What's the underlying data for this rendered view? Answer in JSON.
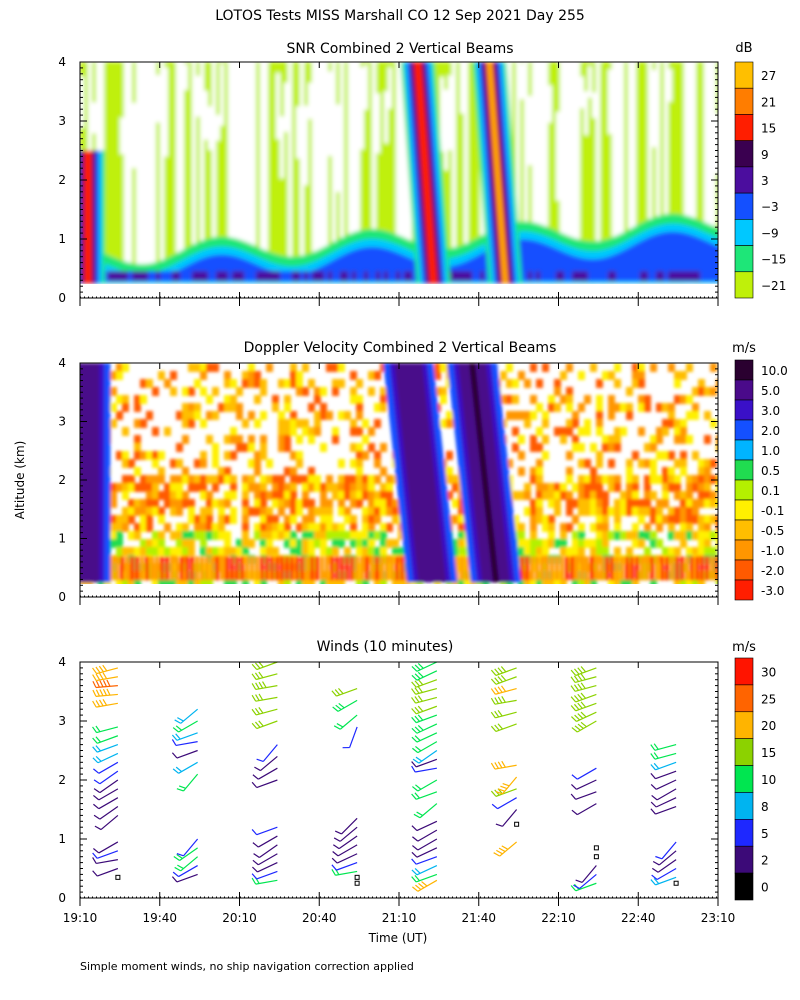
{
  "figure": {
    "title": "LOTOS Tests MISS Marshall CO  12 Sep 2021 Day 255",
    "ylabel": "Altitude (km)",
    "xlabel": "Time (UT)",
    "footnote": "Simple moment winds, no ship navigation correction applied"
  },
  "chart_data": [
    {
      "type": "heatmap",
      "title": "SNR Combined 2 Vertical Beams",
      "xlabel": "Time (UT)",
      "ylabel": "Altitude (km)",
      "x_ticks": [
        "19:10",
        "19:40",
        "20:10",
        "20:40",
        "21:10",
        "21:40",
        "22:10",
        "22:40",
        "23:10"
      ],
      "xlim": [
        "19:10",
        "23:10"
      ],
      "y_ticks": [
        0,
        1,
        2,
        3,
        4
      ],
      "ylim": [
        0,
        4
      ],
      "data_altitude_range_km": [
        0.25,
        4.0
      ],
      "colorbar": {
        "unit": "dB",
        "levels": [
          27,
          21,
          15,
          9,
          3,
          -3,
          -9,
          -15,
          -21
        ],
        "colors": [
          "#ffbf00",
          "#ff7d00",
          "#ff1e00",
          "#3a0050",
          "#4b0d9e",
          "#1450ff",
          "#00c8ff",
          "#1ee678",
          "#bff00a"
        ]
      },
      "features": [
        {
          "time": "19:13",
          "alt_top_km": 2.5,
          "peak_db": 18
        },
        {
          "time": "21:20",
          "alt_top_km": 4.0,
          "peak_db": 18
        },
        {
          "time": "21:47",
          "alt_top_km": 4.0,
          "peak_db": 24
        }
      ]
    },
    {
      "type": "heatmap",
      "title": "Doppler Velocity Combined 2 Vertical Beams",
      "xlabel": "Time (UT)",
      "ylabel": "Altitude (km)",
      "x_ticks": [
        "19:10",
        "19:40",
        "20:10",
        "20:40",
        "21:10",
        "21:40",
        "22:10",
        "22:40",
        "23:10"
      ],
      "xlim": [
        "19:10",
        "23:10"
      ],
      "y_ticks": [
        0,
        1,
        2,
        3,
        4
      ],
      "ylim": [
        0,
        4
      ],
      "data_altitude_range_km": [
        0.25,
        4.0
      ],
      "colorbar": {
        "unit": "m/s",
        "levels": [
          10.0,
          5.0,
          3.0,
          2.0,
          1.0,
          0.5,
          0.1,
          -0.1,
          -0.5,
          -1.0,
          -2.0,
          -3.0
        ],
        "labels": [
          "10.0",
          "5.0",
          "3.0",
          "2.0",
          "1.0",
          "0.5",
          "0.1",
          "-0.1",
          "-0.5",
          "-1.0",
          "-2.0",
          "-3.0"
        ],
        "colors": [
          "#2a0030",
          "#4a0a8a",
          "#3a10c8",
          "#1450ff",
          "#00b4ff",
          "#20dc50",
          "#b4f000",
          "#fff000",
          "#ffbe00",
          "#ff9600",
          "#ff5a00",
          "#ff1e00"
        ]
      },
      "features": [
        {
          "time": "19:12",
          "alt_top_km": 4.0,
          "velocity_ms": 3.0
        },
        {
          "time": "21:18",
          "alt_top_km": 4.0,
          "velocity_ms": 5.0
        },
        {
          "time": "21:42",
          "alt_top_km": 4.0,
          "velocity_ms": 5.0
        }
      ]
    },
    {
      "type": "scatter",
      "title": "Winds (10 minutes)",
      "xlabel": "Time (UT)",
      "ylabel": "Altitude (km)",
      "x_ticks": [
        "19:10",
        "19:40",
        "20:10",
        "20:40",
        "21:10",
        "21:40",
        "22:10",
        "22:40",
        "23:10"
      ],
      "xlim": [
        "19:10",
        "23:10"
      ],
      "y_ticks": [
        0,
        1,
        2,
        3,
        4
      ],
      "ylim": [
        0,
        4
      ],
      "colorbar": {
        "unit": "m/s",
        "levels": [
          30,
          25,
          20,
          15,
          10,
          8,
          5,
          2,
          0
        ],
        "colors": [
          "#ff1400",
          "#ff6400",
          "#ffb400",
          "#8cd200",
          "#00e650",
          "#00b4f0",
          "#1e28ff",
          "#3c0a78",
          "#000000"
        ]
      },
      "profiles": [
        {
          "time": "19:25",
          "levels": [
            {
              "alt": 0.35,
              "speed": 1,
              "dir": 200
            },
            {
              "alt": 0.5,
              "speed": 3,
              "dir": 250
            },
            {
              "alt": 0.65,
              "speed": 4,
              "dir": 260
            },
            {
              "alt": 0.8,
              "speed": 5,
              "dir": 250
            },
            {
              "alt": 0.95,
              "speed": 4,
              "dir": 240
            },
            {
              "alt": 1.4,
              "speed": 4,
              "dir": 230
            },
            {
              "alt": 1.55,
              "speed": 4,
              "dir": 235
            },
            {
              "alt": 1.7,
              "speed": 4,
              "dir": 240
            },
            {
              "alt": 1.85,
              "speed": 4,
              "dir": 240
            },
            {
              "alt": 2.0,
              "speed": 4,
              "dir": 235
            },
            {
              "alt": 2.15,
              "speed": 5,
              "dir": 235
            },
            {
              "alt": 2.3,
              "speed": 7,
              "dir": 240
            },
            {
              "alt": 2.45,
              "speed": 8,
              "dir": 245
            },
            {
              "alt": 2.6,
              "speed": 9,
              "dir": 250
            },
            {
              "alt": 2.75,
              "speed": 10,
              "dir": 250
            },
            {
              "alt": 2.9,
              "speed": 12,
              "dir": 255
            },
            {
              "alt": 3.3,
              "speed": 22,
              "dir": 260
            },
            {
              "alt": 3.45,
              "speed": 24,
              "dir": 265
            },
            {
              "alt": 3.6,
              "speed": 25,
              "dir": 265
            },
            {
              "alt": 3.75,
              "speed": 22,
              "dir": 260
            },
            {
              "alt": 3.9,
              "speed": 20,
              "dir": 255
            }
          ]
        },
        {
          "time": "19:55",
          "levels": [
            {
              "alt": 0.4,
              "speed": 4,
              "dir": 250
            },
            {
              "alt": 0.55,
              "speed": 6,
              "dir": 240
            },
            {
              "alt": 0.7,
              "speed": 10,
              "dir": 230
            },
            {
              "alt": 0.85,
              "speed": 12,
              "dir": 235
            },
            {
              "alt": 1.0,
              "speed": 5,
              "dir": 220
            },
            {
              "alt": 2.1,
              "speed": 10,
              "dir": 220
            },
            {
              "alt": 2.3,
              "speed": 8,
              "dir": 240
            },
            {
              "alt": 2.5,
              "speed": 4,
              "dir": 250
            },
            {
              "alt": 2.65,
              "speed": 5,
              "dir": 260
            },
            {
              "alt": 2.8,
              "speed": 9,
              "dir": 250
            },
            {
              "alt": 3.0,
              "speed": 10,
              "dir": 240
            },
            {
              "alt": 3.2,
              "speed": 9,
              "dir": 230
            }
          ]
        },
        {
          "time": "20:25",
          "levels": [
            {
              "alt": 0.3,
              "speed": 12,
              "dir": 260
            },
            {
              "alt": 0.45,
              "speed": 6,
              "dir": 250
            },
            {
              "alt": 0.6,
              "speed": 4,
              "dir": 245
            },
            {
              "alt": 0.75,
              "speed": 3,
              "dir": 240
            },
            {
              "alt": 0.9,
              "speed": 4,
              "dir": 235
            },
            {
              "alt": 1.05,
              "speed": 4,
              "dir": 240
            },
            {
              "alt": 1.2,
              "speed": 5,
              "dir": 250
            },
            {
              "alt": 2.0,
              "speed": 4,
              "dir": 250
            },
            {
              "alt": 2.2,
              "speed": 3,
              "dir": 240
            },
            {
              "alt": 2.4,
              "speed": 4,
              "dir": 230
            },
            {
              "alt": 2.6,
              "speed": 5,
              "dir": 220
            },
            {
              "alt": 3.0,
              "speed": 15,
              "dir": 250
            },
            {
              "alt": 3.2,
              "speed": 16,
              "dir": 255
            },
            {
              "alt": 3.4,
              "speed": 17,
              "dir": 260
            },
            {
              "alt": 3.6,
              "speed": 18,
              "dir": 260
            },
            {
              "alt": 3.8,
              "speed": 17,
              "dir": 255
            },
            {
              "alt": 4.0,
              "speed": 16,
              "dir": 250
            }
          ]
        },
        {
          "time": "20:55",
          "levels": [
            {
              "alt": 0.25,
              "speed": 1,
              "dir": 180
            },
            {
              "alt": 0.35,
              "speed": 1,
              "dir": 200
            },
            {
              "alt": 0.45,
              "speed": 10,
              "dir": 260
            },
            {
              "alt": 0.6,
              "speed": 5,
              "dir": 250
            },
            {
              "alt": 0.75,
              "speed": 4,
              "dir": 245
            },
            {
              "alt": 0.9,
              "speed": 4,
              "dir": 240
            },
            {
              "alt": 1.05,
              "speed": 4,
              "dir": 235
            },
            {
              "alt": 1.2,
              "speed": 4,
              "dir": 230
            },
            {
              "alt": 1.35,
              "speed": 4,
              "dir": 225
            },
            {
              "alt": 2.9,
              "speed": 5,
              "dir": 200
            },
            {
              "alt": 3.1,
              "speed": 12,
              "dir": 230
            },
            {
              "alt": 3.35,
              "speed": 14,
              "dir": 240
            },
            {
              "alt": 3.55,
              "speed": 15,
              "dir": 250
            }
          ]
        },
        {
          "time": "21:25",
          "levels": [
            {
              "alt": 0.3,
              "speed": 20,
              "dir": 240
            },
            {
              "alt": 0.4,
              "speed": 12,
              "dir": 250
            },
            {
              "alt": 0.55,
              "speed": 8,
              "dir": 245
            },
            {
              "alt": 0.7,
              "speed": 5,
              "dir": 250
            },
            {
              "alt": 0.85,
              "speed": 4,
              "dir": 245
            },
            {
              "alt": 1.0,
              "speed": 4,
              "dir": 240
            },
            {
              "alt": 1.15,
              "speed": 4,
              "dir": 240
            },
            {
              "alt": 1.3,
              "speed": 4,
              "dir": 245
            },
            {
              "alt": 1.6,
              "speed": 10,
              "dir": 230
            },
            {
              "alt": 1.8,
              "speed": 12,
              "dir": 250
            },
            {
              "alt": 2.0,
              "speed": 10,
              "dir": 240
            },
            {
              "alt": 2.2,
              "speed": 6,
              "dir": 260
            },
            {
              "alt": 2.35,
              "speed": 4,
              "dir": 250
            },
            {
              "alt": 2.5,
              "speed": 8,
              "dir": 235
            },
            {
              "alt": 2.65,
              "speed": 10,
              "dir": 240
            },
            {
              "alt": 2.8,
              "speed": 12,
              "dir": 245
            },
            {
              "alt": 2.95,
              "speed": 13,
              "dir": 245
            },
            {
              "alt": 3.1,
              "speed": 14,
              "dir": 250
            },
            {
              "alt": 3.25,
              "speed": 15,
              "dir": 250
            },
            {
              "alt": 3.4,
              "speed": 16,
              "dir": 255
            },
            {
              "alt": 3.55,
              "speed": 16,
              "dir": 255
            },
            {
              "alt": 3.7,
              "speed": 15,
              "dir": 250
            },
            {
              "alt": 3.85,
              "speed": 14,
              "dir": 245
            },
            {
              "alt": 4.0,
              "speed": 13,
              "dir": 245
            }
          ]
        },
        {
          "time": "21:55",
          "levels": [
            {
              "alt": 1.25,
              "speed": 1,
              "dir": 180
            },
            {
              "alt": 0.95,
              "speed": 20,
              "dir": 230
            },
            {
              "alt": 1.5,
              "speed": 3,
              "dir": 220
            },
            {
              "alt": 1.7,
              "speed": 6,
              "dir": 240
            },
            {
              "alt": 1.85,
              "speed": 15,
              "dir": 250
            },
            {
              "alt": 2.05,
              "speed": 22,
              "dir": 220
            },
            {
              "alt": 2.25,
              "speed": 20,
              "dir": 260
            },
            {
              "alt": 2.95,
              "speed": 16,
              "dir": 250
            },
            {
              "alt": 3.15,
              "speed": 17,
              "dir": 255
            },
            {
              "alt": 3.35,
              "speed": 18,
              "dir": 260
            },
            {
              "alt": 3.55,
              "speed": 20,
              "dir": 255
            },
            {
              "alt": 3.75,
              "speed": 19,
              "dir": 250
            },
            {
              "alt": 3.9,
              "speed": 18,
              "dir": 250
            }
          ]
        },
        {
          "time": "22:25",
          "levels": [
            {
              "alt": 0.25,
              "speed": 10,
              "dir": 250
            },
            {
              "alt": 0.4,
              "speed": 5,
              "dir": 230
            },
            {
              "alt": 0.55,
              "speed": 4,
              "dir": 220
            },
            {
              "alt": 0.7,
              "speed": 1,
              "dir": 270
            },
            {
              "alt": 0.85,
              "speed": 1,
              "dir": 90
            },
            {
              "alt": 1.6,
              "speed": 4,
              "dir": 240
            },
            {
              "alt": 1.8,
              "speed": 4,
              "dir": 250
            },
            {
              "alt": 2.0,
              "speed": 4,
              "dir": 245
            },
            {
              "alt": 2.2,
              "speed": 5,
              "dir": 240
            },
            {
              "alt": 3.0,
              "speed": 18,
              "dir": 240
            },
            {
              "alt": 3.15,
              "speed": 18,
              "dir": 245
            },
            {
              "alt": 3.3,
              "speed": 18,
              "dir": 250
            },
            {
              "alt": 3.45,
              "speed": 18,
              "dir": 250
            },
            {
              "alt": 3.6,
              "speed": 19,
              "dir": 255
            },
            {
              "alt": 3.75,
              "speed": 19,
              "dir": 255
            },
            {
              "alt": 3.9,
              "speed": 18,
              "dir": 250
            }
          ]
        },
        {
          "time": "22:55",
          "levels": [
            {
              "alt": 0.25,
              "speed": 1,
              "dir": 200
            },
            {
              "alt": 0.35,
              "speed": 8,
              "dir": 250
            },
            {
              "alt": 0.5,
              "speed": 5,
              "dir": 240
            },
            {
              "alt": 0.65,
              "speed": 4,
              "dir": 235
            },
            {
              "alt": 0.8,
              "speed": 4,
              "dir": 230
            },
            {
              "alt": 0.95,
              "speed": 5,
              "dir": 220
            },
            {
              "alt": 1.55,
              "speed": 4,
              "dir": 250
            },
            {
              "alt": 1.7,
              "speed": 4,
              "dir": 245
            },
            {
              "alt": 1.85,
              "speed": 4,
              "dir": 240
            },
            {
              "alt": 2.0,
              "speed": 4,
              "dir": 245
            },
            {
              "alt": 2.15,
              "speed": 4,
              "dir": 250
            },
            {
              "alt": 2.3,
              "speed": 9,
              "dir": 250
            },
            {
              "alt": 2.45,
              "speed": 10,
              "dir": 255
            },
            {
              "alt": 2.6,
              "speed": 11,
              "dir": 255
            }
          ]
        }
      ]
    }
  ]
}
